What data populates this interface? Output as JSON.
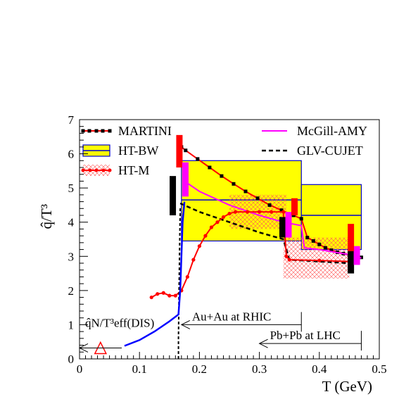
{
  "chart_data": {
    "type": "line",
    "title": "",
    "xlabel": "T (GeV)",
    "ylabel": "q̂/T³",
    "xlim": [
      0,
      0.5
    ],
    "ylim": [
      0,
      7
    ],
    "xticks": [
      "0",
      "0.1",
      "0.2",
      "0.3",
      "0.4",
      "0.5"
    ],
    "yticks": [
      "0",
      "1",
      "2",
      "3",
      "4",
      "5",
      "6",
      "7"
    ],
    "grid": false,
    "legend": [
      {
        "label": "MARTINI",
        "color": "#ff0000",
        "marker": "black-square-line"
      },
      {
        "label": "McGill-AMY",
        "color": "#ff00ff",
        "marker": "line"
      },
      {
        "label": "HT-BW",
        "color": "#ffff00",
        "marker": "box"
      },
      {
        "label": "GLV-CUJET",
        "color": "#000000",
        "marker": "dashed-line"
      },
      {
        "label": "HT-M",
        "color": "#ff3333",
        "marker": "hatched-box-dots"
      }
    ],
    "series": [
      {
        "name": "MARTINI",
        "color": "#ff0000",
        "x": [
          0.17,
          0.177,
          0.197,
          0.217,
          0.237,
          0.257,
          0.277,
          0.297,
          0.317,
          0.337,
          0.357,
          0.37,
          0.38,
          0.39,
          0.4,
          0.41,
          0.42,
          0.43,
          0.44,
          0.45,
          0.46,
          0.47
        ],
        "y": [
          6.2,
          6.1,
          5.85,
          5.6,
          5.35,
          5.12,
          4.9,
          4.7,
          4.5,
          4.35,
          4.2,
          4.1,
          3.55,
          3.45,
          3.35,
          3.25,
          3.18,
          3.12,
          3.08,
          3.03,
          3.0,
          2.97
        ]
      },
      {
        "name": "McGill-AMY",
        "color": "#ff00ff",
        "x": [
          0.175,
          0.2,
          0.25,
          0.3,
          0.34,
          0.37,
          0.375,
          0.4,
          0.45,
          0.47
        ],
        "y": [
          5.2,
          4.9,
          4.5,
          4.2,
          4.0,
          3.9,
          3.25,
          3.2,
          3.05,
          2.95
        ]
      },
      {
        "name": "GLV-CUJET",
        "color": "#000000",
        "x": [
          0.168,
          0.2,
          0.25,
          0.3,
          0.34,
          0.35,
          0.4,
          0.45,
          0.47
        ],
        "y": [
          4.55,
          4.3,
          4.0,
          3.7,
          3.5,
          2.9,
          2.85,
          2.8,
          2.8
        ]
      },
      {
        "name": "HT-M",
        "color": "#ff0000",
        "x": [
          0.12,
          0.13,
          0.14,
          0.15,
          0.16,
          0.17,
          0.18,
          0.19,
          0.2,
          0.21,
          0.22,
          0.23,
          0.24,
          0.25,
          0.26,
          0.28,
          0.3,
          0.32,
          0.34,
          0.345,
          0.35,
          0.4,
          0.45
        ],
        "y": [
          1.8,
          1.9,
          1.93,
          1.85,
          1.85,
          2.0,
          2.4,
          2.9,
          3.3,
          3.6,
          3.85,
          4.0,
          4.15,
          4.25,
          4.3,
          4.3,
          4.3,
          4.3,
          4.3,
          3.0,
          2.9,
          2.88,
          2.85
        ]
      },
      {
        "name": "HT-M steep rise",
        "color": "#ff0000",
        "x": [
          0.165,
          0.165,
          0.1655,
          0.166,
          0.1665,
          0.167,
          0.1675,
          0.168
        ],
        "y": [
          0.0,
          0.6,
          1.3,
          2.0,
          2.7,
          3.3,
          3.9,
          4.45
        ]
      },
      {
        "name": "blue DIS curve",
        "color": "#0000ff",
        "x": [
          0.075,
          0.1,
          0.125,
          0.15,
          0.165,
          0.168,
          0.17,
          0.172,
          0.175
        ],
        "y": [
          0.38,
          0.55,
          0.8,
          1.1,
          1.3,
          2.0,
          3.0,
          4.0,
          4.6
        ]
      }
    ],
    "boxes": [
      {
        "name": "HT-BW RHIC",
        "x0": 0.17,
        "x1": 0.37,
        "y0": 3.45,
        "y1": 5.8,
        "fill": "#ffff00",
        "stroke": "#0000cc",
        "mid": 4.65
      },
      {
        "name": "HT-BW LHC",
        "x0": 0.37,
        "x1": 0.47,
        "y0": 3.2,
        "y1": 5.1,
        "fill": "#ffff00",
        "stroke": "#0000cc",
        "mid": 4.2
      },
      {
        "name": "HT-M RHIC",
        "x0": 0.25,
        "x1": 0.345,
        "y0": 3.8,
        "y1": 4.8,
        "fill": "hatch"
      },
      {
        "name": "HT-M LHC",
        "x0": 0.34,
        "x1": 0.45,
        "y0": 2.35,
        "y1": 3.55,
        "fill": "hatch"
      }
    ],
    "bars": [
      {
        "x": 0.155,
        "w": 0.008,
        "y0": 4.2,
        "y1": 5.35,
        "color": "#000000"
      },
      {
        "x": 0.166,
        "w": 0.008,
        "y0": 5.6,
        "y1": 6.55,
        "color": "#ff0000"
      },
      {
        "x": 0.176,
        "w": 0.008,
        "y0": 4.75,
        "y1": 5.75,
        "color": "#ff00ff"
      },
      {
        "x": 0.338,
        "w": 0.008,
        "y0": 3.55,
        "y1": 4.15,
        "color": "#000000"
      },
      {
        "x": 0.348,
        "w": 0.008,
        "y0": 3.55,
        "y1": 4.3,
        "color": "#ff00ff"
      },
      {
        "x": 0.358,
        "w": 0.008,
        "y0": 4.2,
        "y1": 4.7,
        "color": "#ff0000"
      },
      {
        "x": 0.452,
        "w": 0.008,
        "y0": 2.5,
        "y1": 3.25,
        "color": "#000000"
      },
      {
        "x": 0.462,
        "w": 0.008,
        "y0": 2.75,
        "y1": 3.3,
        "color": "#ff00ff"
      },
      {
        "x": 0.452,
        "w": 0.008,
        "y0": 3.15,
        "y1": 3.95,
        "color": "#ff0000"
      }
    ],
    "dis_point": {
      "x": 0.035,
      "y": 0.32,
      "label": "q̂N/T³eff(DIS)"
    },
    "annotations": [
      {
        "text": "Au+Au at RHIC",
        "x_from": 0.17,
        "x_to": 0.37,
        "y": 1.0
      },
      {
        "text": "Pb+Pb at LHC",
        "x_from": 0.3,
        "x_to": 0.47,
        "y": 0.45
      }
    ]
  }
}
